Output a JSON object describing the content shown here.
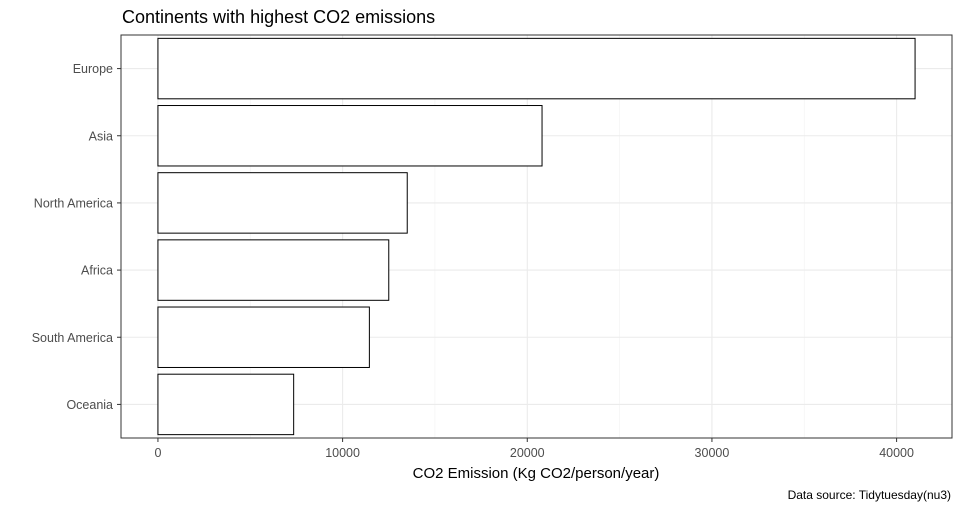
{
  "chart_data": {
    "type": "bar",
    "orientation": "horizontal",
    "title": "Continents with highest CO2 emissions",
    "xlabel": "CO2 Emission (Kg CO2/person/year)",
    "ylabel": "",
    "caption": "Data source: Tidytuesday(nu3)",
    "categories": [
      "Europe",
      "Asia",
      "North America",
      "Africa",
      "South America",
      "Oceania"
    ],
    "values": [
      41000,
      20800,
      13500,
      12500,
      11450,
      7350
    ],
    "xlim": [
      -2000,
      43000
    ],
    "xticks": [
      0,
      10000,
      20000,
      30000,
      40000
    ],
    "xtick_labels": [
      "0",
      "10000",
      "20000",
      "30000",
      "40000"
    ],
    "grid": true,
    "bar_fill": "#ffffff",
    "bar_stroke": "#000000"
  }
}
